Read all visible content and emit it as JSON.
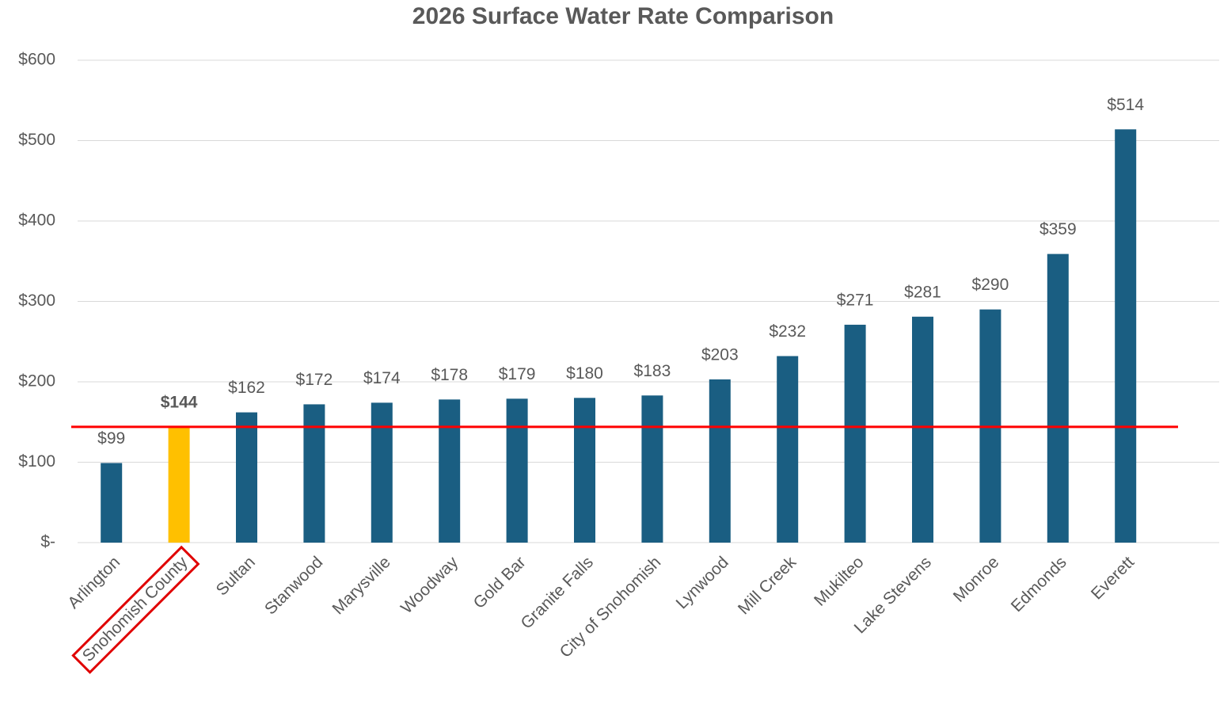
{
  "chart_data": {
    "type": "bar",
    "title": "2026 Surface Water Rate Comparison",
    "categories": [
      "Arlington",
      "Snohomish County",
      "Sultan",
      "Stanwood",
      "Marysville",
      "Woodway",
      "Gold Bar",
      "Granite Falls",
      "City of Snohomish",
      "Lynwood",
      "Mill Creek",
      "Mukilteo",
      "Lake Stevens",
      "Monroe",
      "Edmonds",
      "Everett"
    ],
    "values": [
      99,
      144,
      162,
      172,
      174,
      178,
      179,
      180,
      183,
      203,
      232,
      271,
      281,
      290,
      359,
      514
    ],
    "value_labels": [
      "$99",
      "$144",
      "$162",
      "$172",
      "$174",
      "$178",
      "$179",
      "$180",
      "$183",
      "$203",
      "$232",
      "$271",
      "$281",
      "$290",
      "$359",
      "$514"
    ],
    "colors": [
      "#1a5e82",
      "#ffc000",
      "#1a5e82",
      "#1a5e82",
      "#1a5e82",
      "#1a5e82",
      "#1a5e82",
      "#1a5e82",
      "#1a5e82",
      "#1a5e82",
      "#1a5e82",
      "#1a5e82",
      "#1a5e82",
      "#1a5e82",
      "#1a5e82",
      "#1a5e82"
    ],
    "ylim": [
      0,
      600
    ],
    "yticks": [
      {
        "value": 0,
        "label": "$-"
      },
      {
        "value": 100,
        "label": "$100"
      },
      {
        "value": 200,
        "label": "$200"
      },
      {
        "value": 300,
        "label": "$300"
      },
      {
        "value": 400,
        "label": "$400"
      },
      {
        "value": 500,
        "label": "$500"
      },
      {
        "value": 600,
        "label": "$600"
      }
    ],
    "grid": true,
    "reference_line": {
      "value": 144,
      "color": "#ff0000"
    }
  }
}
